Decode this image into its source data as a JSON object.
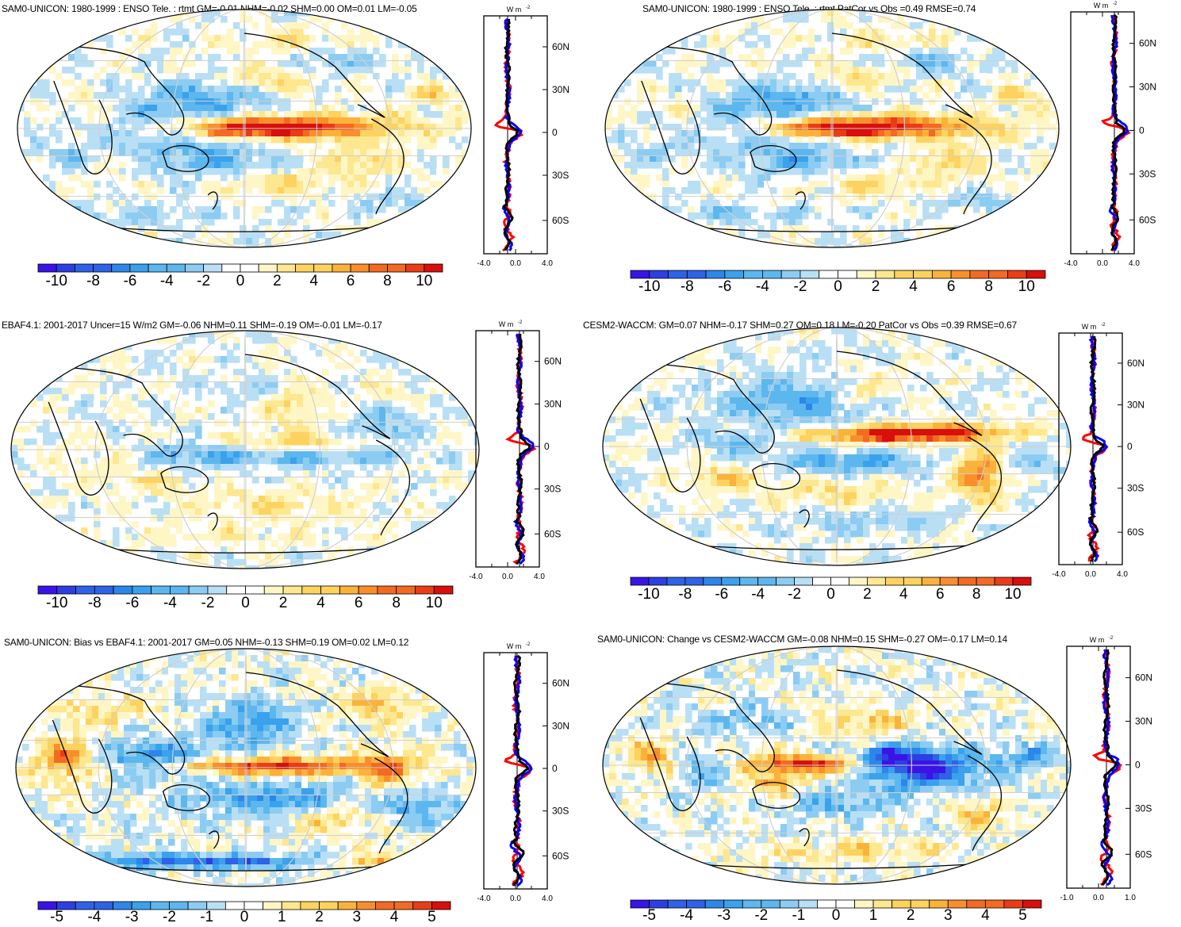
{
  "palette": [
    "#3a14e6",
    "#2c3fe0",
    "#2f62e6",
    "#2d86ea",
    "#3aa1ec",
    "#5cb7ee",
    "#8cccf2",
    "#b9dff5",
    "#ffffff",
    "#fff6c6",
    "#fde78f",
    "#fdd25f",
    "#fbb23a",
    "#f98f2c",
    "#f36a22",
    "#ea3d17",
    "#d70f0d"
  ],
  "panels": [
    {
      "title": "SAM0-UNICON: 1980-1999 : ENSO Tele. : rtmt GM=-0.01 NHM=-0.02 SHM=0.00 OM=0.01 LM=-0.05",
      "units": "W m",
      "colorbar_labels": [
        "-10",
        "-8",
        "-6",
        "-4",
        "-2",
        "0",
        "2",
        "4",
        "6",
        "8",
        "10"
      ],
      "zonal_xticks": [
        "-4.0",
        "0.0",
        "4.0"
      ],
      "zonal_yticks": [
        "60N",
        "30N",
        "0",
        "30S",
        "60S"
      ],
      "pattern": "enso"
    },
    {
      "title": "SAM0-UNICON: 1980-1999 : ENSO Tele. : rtmt PatCor vs Obs =0.49 RMSE=0.74",
      "units": "W m",
      "colorbar_labels": [
        "-10",
        "-8",
        "-6",
        "-4",
        "-2",
        "0",
        "2",
        "4",
        "6",
        "8",
        "10"
      ],
      "zonal_xticks": [
        "-4.0",
        "0.0",
        "4.0"
      ],
      "zonal_yticks": [
        "60N",
        "30N",
        "0",
        "30S",
        "60S"
      ],
      "pattern": "enso"
    },
    {
      "title": "EBAF4.1: 2001-2017 Uncer=15 W/m2 GM=-0.06 NHM=0.11 SHM=-0.19 OM=-0.01 LM=-0.17",
      "units": "W m",
      "colorbar_labels": [
        "-10",
        "-8",
        "-6",
        "-4",
        "-2",
        "0",
        "2",
        "4",
        "6",
        "8",
        "10"
      ],
      "zonal_xticks": [
        "-4.0",
        "0.0",
        "4.0"
      ],
      "zonal_yticks": [
        "60N",
        "30N",
        "0",
        "30S",
        "60S"
      ],
      "pattern": "obs"
    },
    {
      "title": "CESM2-WACCM: GM=0.07 NHM=-0.17 SHM=0.27 OM=0.18 LM=-0.20 PatCor vs Obs =0.39 RMSE=0.67",
      "units": "W m",
      "colorbar_labels": [
        "-10",
        "-8",
        "-6",
        "-4",
        "-2",
        "0",
        "2",
        "4",
        "6",
        "8",
        "10"
      ],
      "zonal_xticks": [
        "-4.0",
        "0.0",
        "4.0"
      ],
      "zonal_yticks": [
        "60N",
        "30N",
        "0",
        "30S",
        "60S"
      ],
      "pattern": "cesm"
    },
    {
      "title": "SAM0-UNICON: Bias vs EBAF4.1: 2001-2017 GM=0.05 NHM=-0.13 SHM=0.19 OM=0.02 LM=0.12",
      "units": "W m",
      "colorbar_labels": [
        "-5",
        "-4",
        "-3",
        "-2",
        "-1",
        "0",
        "1",
        "2",
        "3",
        "4",
        "5"
      ],
      "zonal_xticks": [
        "-4.0",
        "0.0",
        "4.0"
      ],
      "zonal_yticks": [
        "60N",
        "30N",
        "0",
        "30S",
        "60S"
      ],
      "pattern": "bias"
    },
    {
      "title": "SAM0-UNICON: Change vs CESM2-WACCM GM=-0.08 NHM=0.15 SHM=-0.27 OM=-0.17 LM=0.14",
      "units": "W m",
      "colorbar_labels": [
        "-5",
        "-4",
        "-3",
        "-2",
        "-1",
        "0",
        "1",
        "2",
        "3",
        "4",
        "5"
      ],
      "zonal_xticks": [
        "-1.0",
        "0.0",
        "1.0"
      ],
      "zonal_yticks": [
        "60N",
        "30N",
        "0",
        "30S",
        "60S"
      ],
      "pattern": "change"
    }
  ],
  "chart_data": [
    {
      "type": "heatmap",
      "title": "SAM0-UNICON: 1980-1999 : ENSO Tele. : rtmt GM=-0.01 NHM=-0.02 SHM=0.00 OM=0.01 LM=-0.05",
      "colorbar": [
        -10,
        10
      ],
      "zonal_mean_xlim": [
        -4,
        4
      ],
      "series": [
        "black",
        "red",
        "blue"
      ]
    },
    {
      "type": "heatmap",
      "title": "SAM0-UNICON: 1980-1999 : ENSO Tele. : rtmt PatCor vs Obs =0.49 RMSE=0.74",
      "colorbar": [
        -10,
        10
      ],
      "zonal_mean_xlim": [
        -4,
        4
      ]
    },
    {
      "type": "heatmap",
      "title": "EBAF4.1: 2001-2017 Uncer=15 W/m2 GM=-0.06 NHM=0.11 SHM=-0.19 OM=-0.01 LM=-0.17",
      "colorbar": [
        -10,
        10
      ],
      "zonal_mean_xlim": [
        -4,
        4
      ]
    },
    {
      "type": "heatmap",
      "title": "CESM2-WACCM: GM=0.07 NHM=-0.17 SHM=0.27 OM=0.18 LM=-0.20 PatCor vs Obs =0.39 RMSE=0.67",
      "colorbar": [
        -10,
        10
      ],
      "zonal_mean_xlim": [
        -4,
        4
      ]
    },
    {
      "type": "heatmap",
      "title": "SAM0-UNICON: Bias vs EBAF4.1: 2001-2017 GM=0.05 NHM=-0.13 SHM=0.19 OM=0.02 LM=0.12",
      "colorbar": [
        -5,
        5
      ],
      "zonal_mean_xlim": [
        -4,
        4
      ]
    },
    {
      "type": "heatmap",
      "title": "SAM0-UNICON: Change vs CESM2-WACCM GM=-0.08 NHM=0.15 SHM=-0.27 OM=-0.17 LM=0.14",
      "colorbar": [
        -5,
        5
      ],
      "zonal_mean_xlim": [
        -1,
        1
      ]
    }
  ]
}
